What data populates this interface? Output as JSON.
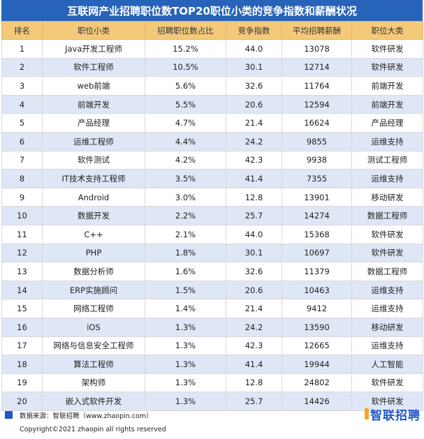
{
  "title": "互联网产业招聘职位数TOP20职位小类的竞争指数和薪酬状况",
  "headers": [
    "排名",
    "职位小类",
    "招聘职位数占比",
    "竞争指数",
    "平均招聘薪酬",
    "职位大类"
  ],
  "rows": [
    [
      "1",
      "Java开发工程师",
      "15.2%",
      "44.0",
      "13078",
      "软件研发"
    ],
    [
      "2",
      "软件工程师",
      "10.5%",
      "30.1",
      "12714",
      "软件研发"
    ],
    [
      "3",
      "web前端",
      "5.6%",
      "32.6",
      "11764",
      "前端开发"
    ],
    [
      "4",
      "前端开发",
      "5.5%",
      "20.6",
      "12594",
      "前端开发"
    ],
    [
      "5",
      "产品经理",
      "4.7%",
      "21.4",
      "16624",
      "产品经理"
    ],
    [
      "6",
      "运维工程师",
      "4.4%",
      "24.2",
      "9855",
      "运维支持"
    ],
    [
      "7",
      "软件测试",
      "4.2%",
      "42.3",
      "9938",
      "测试工程师"
    ],
    [
      "8",
      "IT技术支持工程师",
      "3.5%",
      "41.4",
      "7355",
      "运维支持"
    ],
    [
      "9",
      "Android",
      "3.0%",
      "12.8",
      "13901",
      "移动研发"
    ],
    [
      "10",
      "数据开发",
      "2.2%",
      "25.7",
      "14274",
      "数据工程师"
    ],
    [
      "11",
      "C++",
      "2.1%",
      "44.0",
      "15368",
      "软件研发"
    ],
    [
      "12",
      "PHP",
      "1.8%",
      "30.1",
      "10697",
      "软件研发"
    ],
    [
      "13",
      "数据分析师",
      "1.6%",
      "32.6",
      "11379",
      "数据工程师"
    ],
    [
      "14",
      "ERP实施顾问",
      "1.5%",
      "20.6",
      "10463",
      "运维支持"
    ],
    [
      "15",
      "网络工程师",
      "1.4%",
      "21.4",
      "9412",
      "运维支持"
    ],
    [
      "16",
      "iOS",
      "1.3%",
      "24.2",
      "13590",
      "移动研发"
    ],
    [
      "17",
      "网络与信息安全工程师",
      "1.3%",
      "42.3",
      "12665",
      "运维支持"
    ],
    [
      "18",
      "算法工程师",
      "1.3%",
      "41.4",
      "19944",
      "人工智能"
    ],
    [
      "19",
      "架构师",
      "1.3%",
      "12.8",
      "24802",
      "软件研发"
    ],
    [
      "20",
      "嵌入式软件开发",
      "1.3%",
      "25.7",
      "14426",
      "软件研发"
    ]
  ],
  "footer": {
    "source": "数据来源：智联招聘（www.zhaopin.com）",
    "copyright": "Copyright©2021 zhaopin all rights reserved",
    "logo_text": "智联招聘"
  },
  "colors": {
    "title_bg": "#2763b8",
    "header_bg": "#f5c97a",
    "stripe_bg": "#dfe6f6",
    "accent": "#1f56c7"
  }
}
